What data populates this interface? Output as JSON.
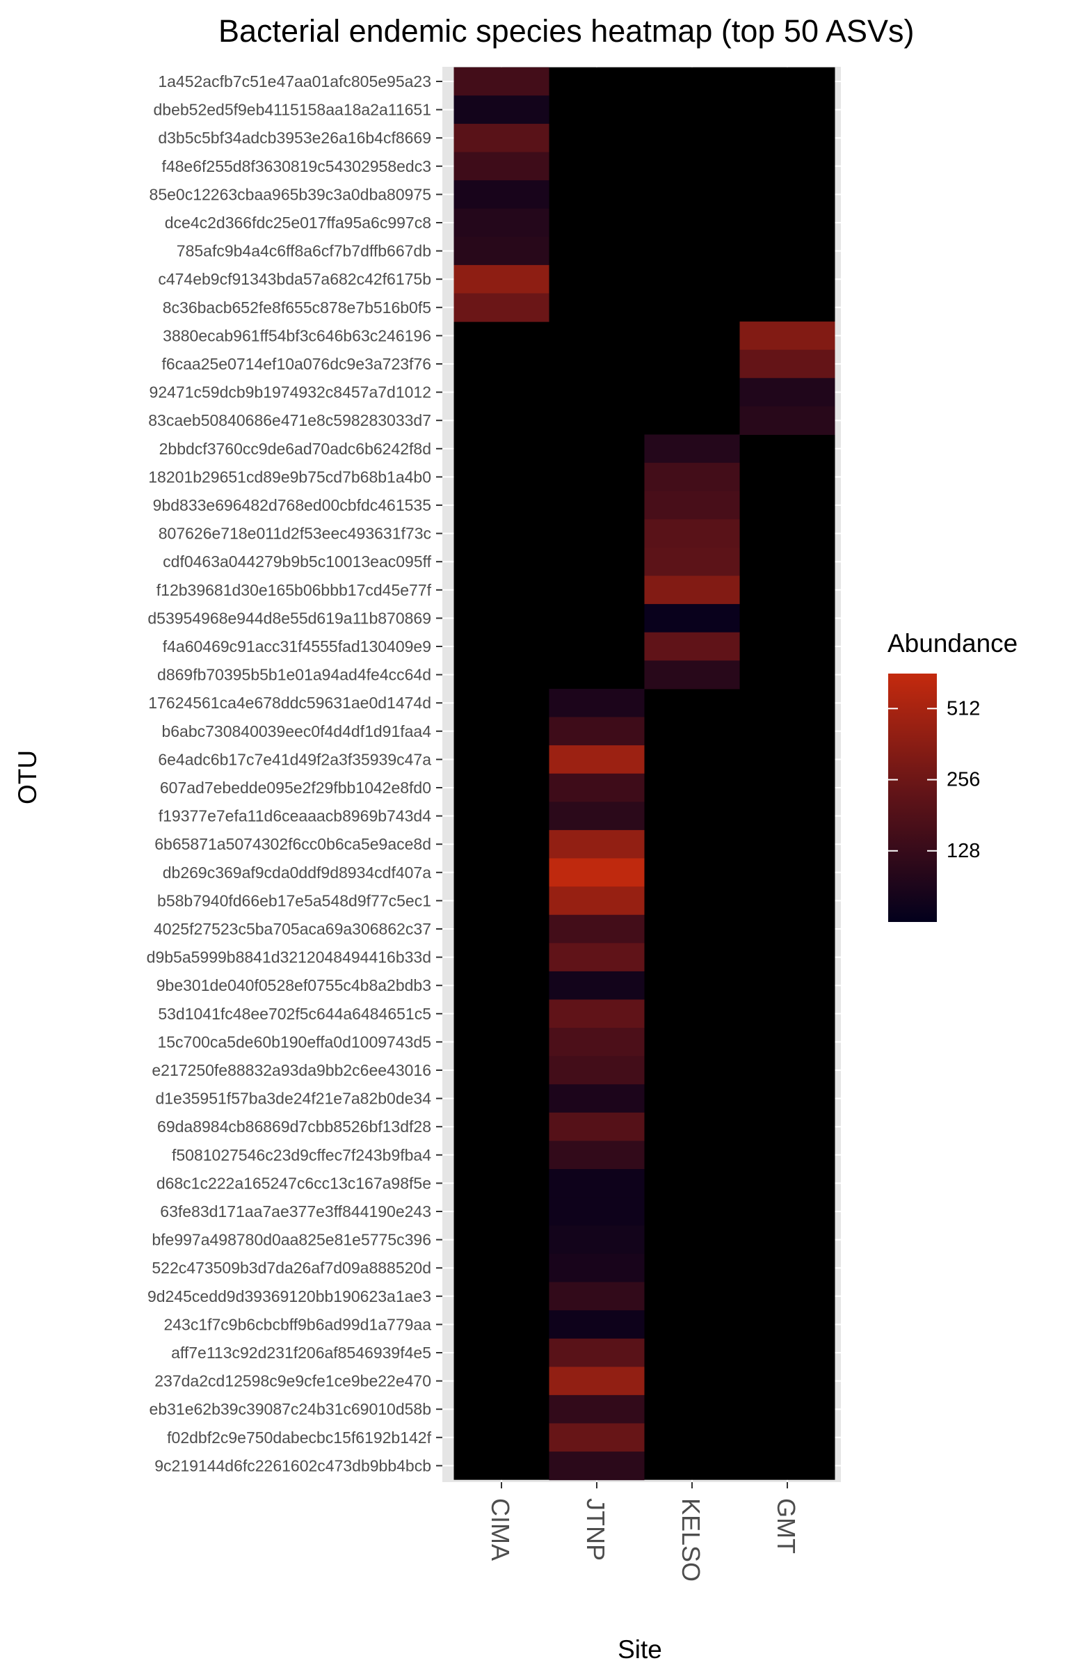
{
  "chart_data": {
    "type": "heatmap",
    "title": "Bacterial endemic species heatmap (top 50 ASVs)",
    "xlabel": "Site",
    "ylabel": "OTU",
    "x_categories": [
      "CIMA",
      "JTNP",
      "KELSO",
      "GMT"
    ],
    "y_categories": [
      "1a452acfb7c51e47aa01afc805e95a23",
      "dbeb52ed5f9eb4115158aa18a2a11651",
      "d3b5c5bf34adcb3953e26a16b4cf8669",
      "f48e6f255d8f3630819c54302958edc3",
      "85e0c12263cbaa965b39c3a0dba80975",
      "dce4c2d366fdc25e017ffa95a6c997c8",
      "785afc9b4a4c6ff8a6cf7b7dffb667db",
      "c474eb9cf91343bda57a682c42f6175b",
      "8c36bacb652fe8f655c878e7b516b0f5",
      "3880ecab961ff54bf3c646b63c246196",
      "f6caa25e0714ef10a076dc9e3a723f76",
      "92471c59dcb9b1974932c8457a7d1012",
      "83caeb50840686e471e8c598283033d7",
      "2bbdcf3760cc9de6ad70adc6b6242f8d",
      "18201b29651cd89e9b75cd7b68b1a4b0",
      "9bd833e696482d768ed00cbfdc461535",
      "807626e718e011d2f53eec493631f73c",
      "cdf0463a044279b9b5c10013eac095ff",
      "f12b39681d30e165b06bbb17cd45e77f",
      "d53954968e944d8e55d619a11b870869",
      "f4a60469c91acc31f4555fad130409e9",
      "d869fb70395b5b1e01a94ad4fe4cc64d",
      "17624561ca4e678ddc59631ae0d1474d",
      "b6abc730840039eec0f4d4df1d91faa4",
      "6e4adc6b17c7e41d49f2a3f35939c47a",
      "607ad7ebedde095e2f29fbb1042e8fd0",
      "f19377e7efa11d6ceaaacb8969b743d4",
      "6b65871a5074302f6cc0b6ca5e9ace8d",
      "db269c369af9cda0ddf9d8934cdf407a",
      "b58b7940fd66eb17e5a548d9f77c5ec1",
      "4025f27523c5ba705aca69a306862c37",
      "d9b5a5999b8841d3212048494416b33d",
      "9be301de040f0528ef0755c4b8a2bdb3",
      "53d1041fc48ee702f5c644a6484651c5",
      "15c700ca5de60b190effa0d1009743d5",
      "e217250fe88832a93da9bb2c6ee43016",
      "d1e35951f57ba3de24f21e7a82b0de34",
      "69da8984cb86869d7cbb8526bf13df28",
      "f5081027546c23d9cffec7f243b9fba4",
      "d68c1c222a165247c6cc13c167a98f5e",
      "63fe83d171aa7ae377e3ff844190e243",
      "bfe997a498780d0aa825e81e5775c396",
      "522c473509b3d7da26af7d09a888520d",
      "9d245cedd9d39369120bb190623a1ae3",
      "243c1f7c9b6cbcbff9b6ad99d1a779aa",
      "aff7e113c92d231f206af8546939f4e5",
      "237da2cd12598c9e9cfe1ce9be22e470",
      "eb31e62b39c39087c24b31c69010d58b",
      "f02dbf2c9e750dabecbc15f6192b142f",
      "9c219144d6fc2261602c473db9bb4bcb"
    ],
    "cells": [
      {
        "otu": "1a452acfb7c51e47aa01afc805e95a23",
        "site": "CIMA",
        "value": 150
      },
      {
        "otu": "dbeb52ed5f9eb4115158aa18a2a11651",
        "site": "CIMA",
        "value": 80
      },
      {
        "otu": "d3b5c5bf34adcb3953e26a16b4cf8669",
        "site": "CIMA",
        "value": 200
      },
      {
        "otu": "f48e6f255d8f3630819c54302958edc3",
        "site": "CIMA",
        "value": 140
      },
      {
        "otu": "85e0c12263cbaa965b39c3a0dba80975",
        "site": "CIMA",
        "value": 85
      },
      {
        "otu": "dce4c2d366fdc25e017ffa95a6c997c8",
        "site": "CIMA",
        "value": 100
      },
      {
        "otu": "785afc9b4a4c6ff8a6cf7b7dffb667db",
        "site": "CIMA",
        "value": 105
      },
      {
        "otu": "c474eb9cf91343bda57a682c42f6175b",
        "site": "CIMA",
        "value": 380
      },
      {
        "otu": "8c36bacb652fe8f655c878e7b516b0f5",
        "site": "CIMA",
        "value": 250
      },
      {
        "otu": "3880ecab961ff54bf3c646b63c246196",
        "site": "GMT",
        "value": 330
      },
      {
        "otu": "f6caa25e0714ef10a076dc9e3a723f76",
        "site": "GMT",
        "value": 230
      },
      {
        "otu": "92471c59dcb9b1974932c8457a7d1012",
        "site": "GMT",
        "value": 95
      },
      {
        "otu": "83caeb50840686e471e8c598283033d7",
        "site": "GMT",
        "value": 105
      },
      {
        "otu": "2bbdcf3760cc9de6ad70adc6b6242f8d",
        "site": "KELSO",
        "value": 100
      },
      {
        "otu": "18201b29651cd89e9b75cd7b68b1a4b0",
        "site": "KELSO",
        "value": 150
      },
      {
        "otu": "9bd833e696482d768ed00cbfdc461535",
        "site": "KELSO",
        "value": 160
      },
      {
        "otu": "807626e718e011d2f53eec493631f73c",
        "site": "KELSO",
        "value": 200
      },
      {
        "otu": "cdf0463a044279b9b5c10013eac095ff",
        "site": "KELSO",
        "value": 210
      },
      {
        "otu": "f12b39681d30e165b06bbb17cd45e77f",
        "site": "KELSO",
        "value": 330
      },
      {
        "otu": "d53954968e944d8e55d619a11b870869",
        "site": "KELSO",
        "value": 70
      },
      {
        "otu": "f4a60469c91acc31f4555fad130409e9",
        "site": "KELSO",
        "value": 220
      },
      {
        "otu": "d869fb70395b5b1e01a94ad4fe4cc64d",
        "site": "KELSO",
        "value": 105
      },
      {
        "otu": "17624561ca4e678ddc59631ae0d1474d",
        "site": "JTNP",
        "value": 90
      },
      {
        "otu": "b6abc730840039eec0f4d4df1d91faa4",
        "site": "JTNP",
        "value": 140
      },
      {
        "otu": "6e4adc6b17c7e41d49f2a3f35939c47a",
        "site": "JTNP",
        "value": 450
      },
      {
        "otu": "607ad7ebedde095e2f29fbb1042e8fd0",
        "site": "JTNP",
        "value": 140
      },
      {
        "otu": "f19377e7efa11d6ceaaacb8969b743d4",
        "site": "JTNP",
        "value": 110
      },
      {
        "otu": "6b65871a5074302f6cc0b6ca5e9ace8d",
        "site": "JTNP",
        "value": 400
      },
      {
        "otu": "db269c369af9cda0ddf9d8934cdf407a",
        "site": "JTNP",
        "value": 680
      },
      {
        "otu": "b58b7940fd66eb17e5a548d9f77c5ec1",
        "site": "JTNP",
        "value": 420
      },
      {
        "otu": "4025f27523c5ba705aca69a306862c37",
        "site": "JTNP",
        "value": 150
      },
      {
        "otu": "d9b5a5999b8841d3212048494416b33d",
        "site": "JTNP",
        "value": 220
      },
      {
        "otu": "9be301de040f0528ef0755c4b8a2bdb3",
        "site": "JTNP",
        "value": 80
      },
      {
        "otu": "53d1041fc48ee702f5c644a6484651c5",
        "site": "JTNP",
        "value": 220
      },
      {
        "otu": "15c700ca5de60b190effa0d1009743d5",
        "site": "JTNP",
        "value": 170
      },
      {
        "otu": "e217250fe88832a93da9bb2c6ee43016",
        "site": "JTNP",
        "value": 150
      },
      {
        "otu": "d1e35951f57ba3de24f21e7a82b0de34",
        "site": "JTNP",
        "value": 90
      },
      {
        "otu": "69da8984cb86869d7cbb8526bf13df28",
        "site": "JTNP",
        "value": 190
      },
      {
        "otu": "f5081027546c23d9cffec7f243b9fba4",
        "site": "JTNP",
        "value": 120
      },
      {
        "otu": "d68c1c222a165247c6cc13c167a98f5e",
        "site": "JTNP",
        "value": 75
      },
      {
        "otu": "63fe83d171aa7ae377e3ff844190e243",
        "site": "JTNP",
        "value": 75
      },
      {
        "otu": "bfe997a498780d0aa825e81e5775c396",
        "site": "JTNP",
        "value": 80
      },
      {
        "otu": "522c473509b3d7da26af7d09a888520d",
        "site": "JTNP",
        "value": 85
      },
      {
        "otu": "9d245cedd9d39369120bb190623a1ae3",
        "site": "JTNP",
        "value": 120
      },
      {
        "otu": "243c1f7c9b6cbcbff9b6ad99d1a779aa",
        "site": "JTNP",
        "value": 75
      },
      {
        "otu": "aff7e113c92d231f206af8546939f4e5",
        "site": "JTNP",
        "value": 200
      },
      {
        "otu": "237da2cd12598c9e9cfe1ce9be22e470",
        "site": "JTNP",
        "value": 400
      },
      {
        "otu": "eb31e62b39c39087c24b31c69010d58b",
        "site": "JTNP",
        "value": 120
      },
      {
        "otu": "f02dbf2c9e750dabecbc15f6192b142f",
        "site": "JTNP",
        "value": 240
      },
      {
        "otu": "9c219144d6fc2261602c473db9bb4bcb",
        "site": "JTNP",
        "value": 110
      }
    ],
    "empty_cell_color": "#000000",
    "panel_background": "#e5e5e5",
    "legend": {
      "title": "Abundance",
      "scale": "log2",
      "breaks": [
        128,
        256,
        512
      ],
      "break_labels": [
        "128",
        "256",
        "512"
      ],
      "range": [
        64,
        720
      ],
      "colors": [
        "#02001c",
        "#5e1318",
        "#c42a0e"
      ],
      "placement": "right"
    }
  }
}
